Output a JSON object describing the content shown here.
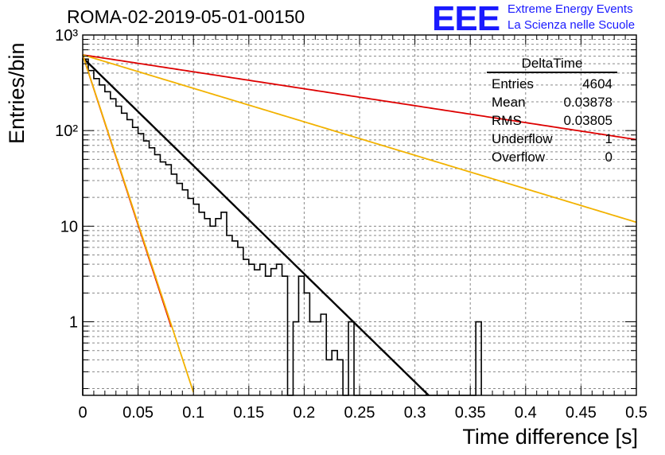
{
  "title": "ROMA-02-2019-05-01-00150",
  "logo": {
    "mark": "EEE",
    "line1": "Extreme Energy Events",
    "line2": "La Scienza nelle Scuole",
    "color": "#1a1aff"
  },
  "stats": {
    "title": "DeltaTime",
    "rows": [
      {
        "label": "Entries",
        "value": "4604"
      },
      {
        "label": "Mean",
        "value": "0.03878"
      },
      {
        "label": "RMS",
        "value": "0.03805"
      },
      {
        "label": "Underflow",
        "value": "1"
      },
      {
        "label": "Overflow",
        "value": "0"
      }
    ]
  },
  "chart_data": {
    "type": "line",
    "xlabel": "Time difference [s]",
    "ylabel": "Entries/bin",
    "xlim": [
      0,
      0.5
    ],
    "ylim": [
      0.17,
      1000
    ],
    "yscale": "log",
    "grid": true,
    "x_ticks": [
      "0",
      "0.05",
      "0.1",
      "0.15",
      "0.2",
      "0.25",
      "0.3",
      "0.35",
      "0.4",
      "0.45",
      "0.5"
    ],
    "y_ticks": [
      {
        "label": "1",
        "value": 1
      },
      {
        "label": "10",
        "value": 10
      },
      {
        "label": "10²",
        "value": 100
      },
      {
        "label": "10³",
        "value": 1000
      }
    ],
    "histogram": {
      "bin_width": 0.005,
      "color": "#000000",
      "values": [
        560,
        425,
        350,
        300,
        255,
        215,
        180,
        152,
        130,
        108,
        93,
        78,
        66,
        56,
        47,
        44,
        35,
        28,
        24,
        19.5,
        17,
        14,
        12,
        10,
        12,
        14,
        8,
        7,
        6,
        4.5,
        4,
        3.5,
        4,
        3,
        3.6,
        4,
        3,
        0.17,
        1,
        3,
        2,
        1,
        1,
        1.2,
        0.4,
        0.5,
        0.4,
        0.17,
        1,
        0.17,
        0.17,
        0.17,
        0.17,
        0.17,
        0.17,
        0.17,
        0.17,
        0.17,
        0.17,
        0.17,
        0.17,
        0.17,
        0.17,
        0.17,
        0.17,
        0.17,
        0.17,
        0.17,
        0.17,
        0.17,
        0.17,
        1
      ]
    },
    "series": [
      {
        "amplitude": 580,
        "tau": 0.0384,
        "x_range": [
          0,
          0.315
        ],
        "color": "#000000"
      },
      {
        "amplitude": 620,
        "tau": 0.245,
        "x_range": [
          0,
          0.5
        ],
        "color": "#dd0000"
      },
      {
        "amplitude": 620,
        "tau": 0.0122,
        "x_range": [
          0,
          0.08
        ],
        "color": "#dd0000"
      },
      {
        "amplitude": 620,
        "tau": 0.124,
        "x_range": [
          0,
          0.5
        ],
        "color": "#f2b200"
      },
      {
        "amplitude": 620,
        "tau": 0.0123,
        "x_range": [
          0,
          0.1
        ],
        "color": "#f2b200"
      }
    ]
  }
}
